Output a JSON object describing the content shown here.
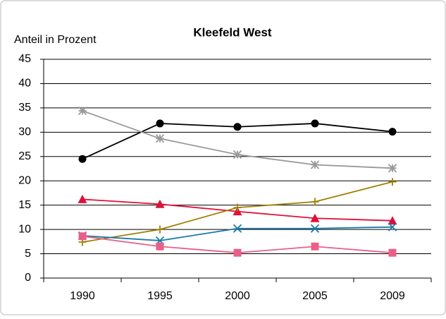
{
  "chart_data": {
    "type": "line",
    "title": "Kleefeld West",
    "y_label": "Anteil in Prozent",
    "categories": [
      "1990",
      "1995",
      "2000",
      "2005",
      "2009"
    ],
    "series": [
      {
        "color": "#000000",
        "marker": "circle",
        "values": [
          24.5,
          31.8,
          31.1,
          31.8,
          30.1
        ]
      },
      {
        "color": "#999999",
        "marker": "asterisk",
        "values": [
          34.4,
          28.7,
          25.4,
          23.3,
          22.6
        ]
      },
      {
        "color": "#e0103a",
        "marker": "triangle",
        "values": [
          16.2,
          15.2,
          13.7,
          12.3,
          11.8
        ]
      },
      {
        "color": "#a08000",
        "marker": "plus",
        "values": [
          7.4,
          10.0,
          14.5,
          15.7,
          19.8
        ]
      },
      {
        "color": "#1a7aaa",
        "marker": "x",
        "values": [
          8.7,
          7.7,
          10.2,
          10.2,
          10.5
        ]
      },
      {
        "color": "#e8608a",
        "marker": "square",
        "values": [
          8.6,
          6.5,
          5.2,
          6.5,
          5.2
        ]
      }
    ],
    "ylim": [
      0,
      45
    ],
    "yticks": [
      0,
      5,
      10,
      15,
      20,
      25,
      30,
      35,
      40,
      45
    ],
    "grid": true
  }
}
